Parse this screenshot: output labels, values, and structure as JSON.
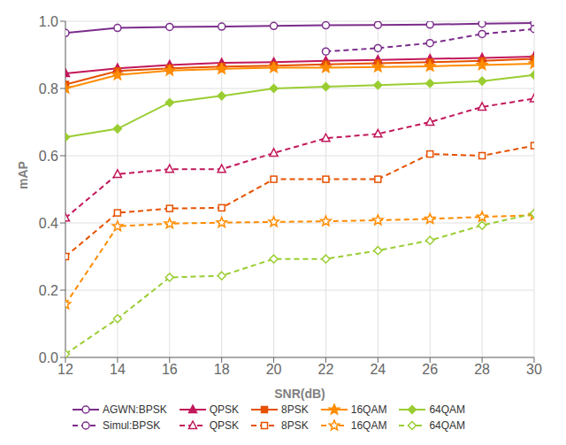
{
  "chart_data": {
    "type": "line",
    "x": [
      12,
      14,
      16,
      18,
      20,
      22,
      24,
      26,
      28,
      30
    ],
    "xlabel": "SNR(dB)",
    "ylabel": "mAP",
    "xlim": [
      12,
      30
    ],
    "ylim": [
      0.0,
      1.0
    ],
    "xticks": [
      12,
      14,
      16,
      18,
      20,
      22,
      24,
      26,
      28,
      30
    ],
    "yticks": [
      {
        "value": 0.0,
        "label": "0.0"
      },
      0.2,
      0.4,
      0.6,
      0.8,
      {
        "value": 1.0,
        "label": "1.0"
      }
    ],
    "grid": true,
    "legend": "lower left",
    "series": [
      {
        "name": "AGWN:BPSK",
        "color": "#7B2D8B",
        "marker": "circle-open",
        "line_style": "solid",
        "values": [
          0.965,
          0.98,
          0.983,
          0.984,
          0.986,
          0.988,
          0.989,
          0.99,
          0.993,
          0.995
        ]
      },
      {
        "name": "QPSK",
        "color": "#C2185B",
        "marker": "triangle",
        "line_style": "solid",
        "values": [
          0.845,
          0.86,
          0.87,
          0.876,
          0.878,
          0.882,
          0.885,
          0.888,
          0.891,
          0.895
        ]
      },
      {
        "name": "8PSK",
        "color": "#E65100",
        "marker": "square",
        "line_style": "solid",
        "values": [
          0.812,
          0.852,
          0.86,
          0.865,
          0.868,
          0.872,
          0.875,
          0.878,
          0.882,
          0.888
        ]
      },
      {
        "name": "16QAM",
        "color": "#FF8C00",
        "marker": "star",
        "line_style": "solid",
        "values": [
          0.8,
          0.84,
          0.853,
          0.858,
          0.862,
          0.862,
          0.864,
          0.866,
          0.87,
          0.874
        ]
      },
      {
        "name": "64QAM",
        "color": "#9ACD32",
        "marker": "diamond",
        "line_style": "solid",
        "values": [
          0.655,
          0.68,
          0.758,
          0.778,
          0.8,
          0.805,
          0.81,
          0.815,
          0.822,
          0.84
        ]
      },
      {
        "name": "Simul:BPSK",
        "color": "#7B2D8B",
        "marker": "circle-open",
        "line_style": "dashed",
        "values": [
          null,
          null,
          null,
          null,
          null,
          0.91,
          0.92,
          0.935,
          0.962,
          0.977
        ]
      },
      {
        "name": "QPSK",
        "color": "#C2185B",
        "marker": "triangle-open",
        "line_style": "dashed",
        "values": [
          0.415,
          0.545,
          0.56,
          0.56,
          0.608,
          0.652,
          0.665,
          0.7,
          0.745,
          0.77
        ]
      },
      {
        "name": "8PSK",
        "color": "#E65100",
        "marker": "square-open",
        "line_style": "dashed",
        "values": [
          0.3,
          0.43,
          0.443,
          0.445,
          0.53,
          0.53,
          0.53,
          0.605,
          0.6,
          0.63
        ]
      },
      {
        "name": "16QAM",
        "color": "#FF8C00",
        "marker": "star-open",
        "line_style": "dashed",
        "values": [
          0.158,
          0.39,
          0.398,
          0.401,
          0.403,
          0.405,
          0.408,
          0.412,
          0.418,
          0.423
        ]
      },
      {
        "name": "64QAM",
        "color": "#9ACD32",
        "marker": "diamond-open",
        "line_style": "dashed",
        "values": [
          0.01,
          0.115,
          0.238,
          0.243,
          0.293,
          0.293,
          0.318,
          0.348,
          0.393,
          0.428
        ]
      }
    ]
  }
}
